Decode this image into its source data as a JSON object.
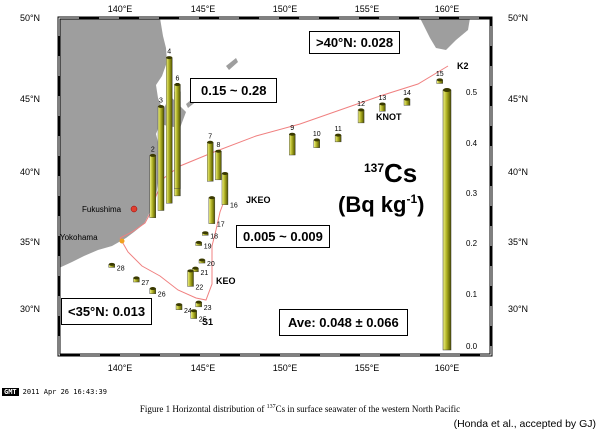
{
  "lon_ticks": [
    "140°E",
    "145°E",
    "150°E",
    "155°E",
    "160°E"
  ],
  "lat_ticks": [
    "50°N",
    "45°N",
    "40°N",
    "35°N",
    "30°N"
  ],
  "boxes": {
    "north": ">40°N: 0.028",
    "high": "0.15 ~ 0.28",
    "low": "0.005 ~ 0.009",
    "south": "<35°N: 0.013",
    "ave": "Ave: 0.048 ± 0.066"
  },
  "unit": {
    "isotope_mass": "137",
    "isotope": "Cs",
    "unit_main": "(Bq kg",
    "unit_exp": "-1",
    "unit_end": ")"
  },
  "places": {
    "fukushima": "Fukushima",
    "yokohama": "Yokohama",
    "k2": "K2",
    "knot": "KNOT",
    "jkeo": "JKEO",
    "keo": "KEO",
    "s1": "S1"
  },
  "scale_ticks": [
    "0.5",
    "0.4",
    "0.3",
    "0.2",
    "0.1",
    "0.0"
  ],
  "stations": [
    {
      "id": "2",
      "lon": 142.0,
      "lat": 37.0,
      "value": 0.12
    },
    {
      "id": "3",
      "lon": 142.5,
      "lat": 37.5,
      "value": 0.2
    },
    {
      "id": "4",
      "lon": 143.0,
      "lat": 38.0,
      "value": 0.28
    },
    {
      "id": "5",
      "lon": 143.5,
      "lat": 38.5,
      "value": 0.2
    },
    {
      "id": "6",
      "lon": 143.5,
      "lat": 39.0,
      "value": 0.2
    },
    {
      "id": "7",
      "lon": 145.5,
      "lat": 39.5,
      "value": 0.075
    },
    {
      "id": "8",
      "lon": 146.0,
      "lat": 39.6,
      "value": 0.055
    },
    {
      "id": "9",
      "lon": 150.5,
      "lat": 41.3,
      "value": 0.04
    },
    {
      "id": "10",
      "lon": 152.0,
      "lat": 41.8,
      "value": 0.015
    },
    {
      "id": "11",
      "lon": 153.3,
      "lat": 42.2,
      "value": 0.013
    },
    {
      "id": "12",
      "lon": 154.7,
      "lat": 43.5,
      "value": 0.025
    },
    {
      "id": "13",
      "lon": 156.0,
      "lat": 44.3,
      "value": 0.014
    },
    {
      "id": "14",
      "lon": 157.5,
      "lat": 44.7,
      "value": 0.012
    },
    {
      "id": "15",
      "lon": 159.5,
      "lat": 46.2,
      "value": 0.007
    },
    {
      "id": "16",
      "lon": 146.4,
      "lat": 37.9,
      "value": 0.06
    },
    {
      "id": "17",
      "lon": 145.6,
      "lat": 36.6,
      "value": 0.05
    },
    {
      "id": "18",
      "lon": 145.2,
      "lat": 35.8,
      "value": 0.005
    },
    {
      "id": "19",
      "lon": 144.8,
      "lat": 35.1,
      "value": 0.006
    },
    {
      "id": "20",
      "lon": 145.0,
      "lat": 33.9,
      "value": 0.006
    },
    {
      "id": "21",
      "lon": 144.6,
      "lat": 33.3,
      "value": 0.007
    },
    {
      "id": "22",
      "lon": 144.3,
      "lat": 32.3,
      "value": 0.03
    },
    {
      "id": "23",
      "lon": 144.8,
      "lat": 30.9,
      "value": 0.009
    },
    {
      "id": "24",
      "lon": 143.6,
      "lat": 30.7,
      "value": 0.01
    },
    {
      "id": "25",
      "lon": 144.5,
      "lat": 30.1,
      "value": 0.015
    },
    {
      "id": "26",
      "lon": 142.0,
      "lat": 31.8,
      "value": 0.01
    },
    {
      "id": "27",
      "lon": 141.0,
      "lat": 32.6,
      "value": 0.008
    },
    {
      "id": "28",
      "lon": 139.5,
      "lat": 33.6,
      "value": 0.006
    }
  ],
  "gmt_logo": "GMT",
  "gmt_timestamp": "2011 Apr 26 16:43:39",
  "caption_prefix": "Figure 1 Horizontal distribution of ",
  "caption_sup": "137",
  "caption_suffix": "Cs in surface seawater of the western North Pacific",
  "citation": "(Honda et al., accepted by GJ)",
  "colors": {
    "bar_light": "#eef07a",
    "bar_mid": "#a8aa1a",
    "bar_dark": "#5a5c00",
    "land": "#9e9e9e",
    "track": "#f08080"
  }
}
